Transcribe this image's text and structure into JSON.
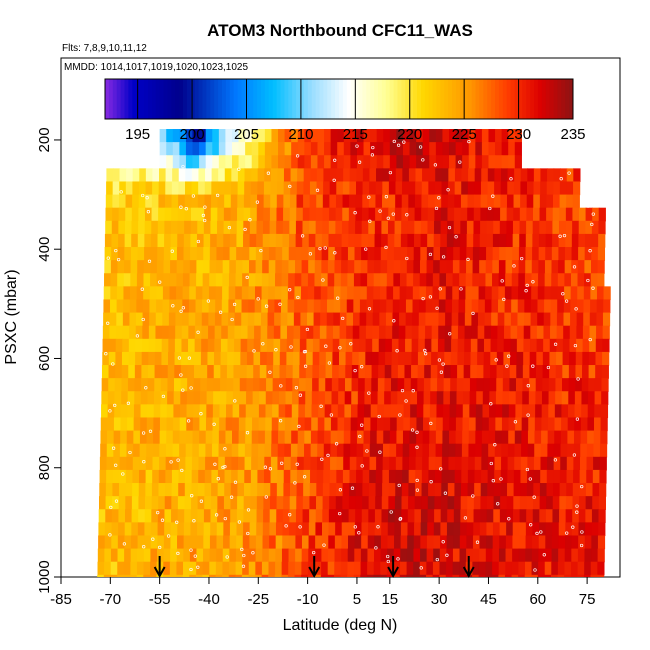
{
  "chart_data": {
    "type": "heatmap",
    "title": "ATOM3 Northbound CFC11_WAS",
    "annotations": {
      "flights": "Flts: 7,8,9,10,11,12",
      "dates": "MMDD: 1014,1017,1019,1020,1023,1025"
    },
    "xlabel": "Latitude (deg N)",
    "ylabel": "PSXC (mbar)",
    "xlim": [
      -85,
      85
    ],
    "ylim": [
      1000,
      50
    ],
    "y_reversed": true,
    "x_ticks": [
      -85,
      -70,
      -55,
      -40,
      -25,
      -10,
      5,
      15,
      30,
      45,
      60,
      75
    ],
    "y_ticks": [
      200,
      400,
      600,
      800,
      1000
    ],
    "colorbar": {
      "min": 192,
      "max": 235,
      "ticks": [
        195,
        200,
        205,
        210,
        215,
        220,
        225,
        230,
        235
      ],
      "placement": "top inside plot"
    },
    "marker_arrows_latitude": [
      -55,
      -8,
      16,
      39
    ],
    "coverage": {
      "lat_range": [
        -74,
        80
      ],
      "pressure_range": [
        180,
        1000
      ],
      "top_layer_lat_range": [
        -55,
        55
      ]
    },
    "samples_mean_by_pressure_band": [
      {
        "pressure": 190,
        "values_by_latitude": [
          {
            "lat": -55,
            "value": 210
          },
          {
            "lat": -45,
            "value": 198
          },
          {
            "lat": -35,
            "value": 212
          },
          {
            "lat": -25,
            "value": 220
          },
          {
            "lat": -15,
            "value": 228
          },
          {
            "lat": 0,
            "value": 231
          },
          {
            "lat": 15,
            "value": 233
          },
          {
            "lat": 30,
            "value": 232
          },
          {
            "lat": 45,
            "value": 231
          },
          {
            "lat": 55,
            "value": 230
          }
        ]
      },
      {
        "pressure": 300,
        "values_by_latitude": [
          {
            "lat": -70,
            "value": 222
          },
          {
            "lat": -50,
            "value": 222
          },
          {
            "lat": -30,
            "value": 224
          },
          {
            "lat": -10,
            "value": 229
          },
          {
            "lat": 10,
            "value": 230
          },
          {
            "lat": 30,
            "value": 231
          },
          {
            "lat": 50,
            "value": 230
          },
          {
            "lat": 75,
            "value": 229
          }
        ]
      },
      {
        "pressure": 500,
        "values_by_latitude": [
          {
            "lat": -70,
            "value": 223
          },
          {
            "lat": -50,
            "value": 224
          },
          {
            "lat": -30,
            "value": 225
          },
          {
            "lat": -10,
            "value": 228
          },
          {
            "lat": 10,
            "value": 230
          },
          {
            "lat": 30,
            "value": 231
          },
          {
            "lat": 50,
            "value": 230
          },
          {
            "lat": 75,
            "value": 229
          }
        ]
      },
      {
        "pressure": 700,
        "values_by_latitude": [
          {
            "lat": -70,
            "value": 223
          },
          {
            "lat": -50,
            "value": 224
          },
          {
            "lat": -30,
            "value": 225
          },
          {
            "lat": -10,
            "value": 228
          },
          {
            "lat": 10,
            "value": 231
          },
          {
            "lat": 30,
            "value": 231
          },
          {
            "lat": 50,
            "value": 231
          },
          {
            "lat": 75,
            "value": 230
          }
        ]
      },
      {
        "pressure": 900,
        "values_by_latitude": [
          {
            "lat": -70,
            "value": 223
          },
          {
            "lat": -50,
            "value": 224
          },
          {
            "lat": -30,
            "value": 225
          },
          {
            "lat": -10,
            "value": 229
          },
          {
            "lat": 10,
            "value": 232
          },
          {
            "lat": 30,
            "value": 232
          },
          {
            "lat": 50,
            "value": 231
          },
          {
            "lat": 75,
            "value": 231
          }
        ]
      }
    ]
  }
}
